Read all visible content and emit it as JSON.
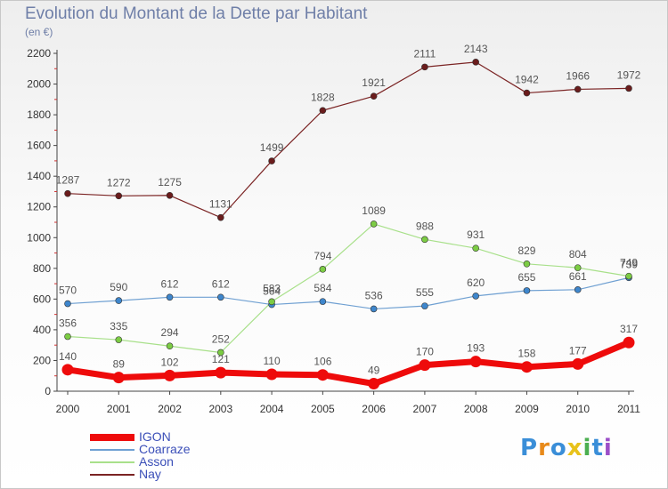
{
  "title": "Evolution du Montant de la Dette par Habitant",
  "subtitle": "(en €)",
  "logo": {
    "letters": [
      "P",
      "r",
      "o",
      "x",
      "i",
      "t",
      "i"
    ],
    "colors": [
      "#3a8ed8",
      "#e88a1a",
      "#3a8ed8",
      "#e8c21a",
      "#4caf50",
      "#3a8ed8",
      "#9c4fc8"
    ]
  },
  "chart_data": {
    "type": "line",
    "title": "Evolution du Montant de la Dette par Habitant",
    "ylabel": "(en €)",
    "xlabel": "",
    "x": [
      "2000",
      "2001",
      "2002",
      "2003",
      "2004",
      "2005",
      "2006",
      "2007",
      "2008",
      "2009",
      "2010",
      "2011"
    ],
    "ylim": [
      0,
      2200
    ],
    "yticks": [
      0,
      200,
      400,
      600,
      800,
      1000,
      1200,
      1400,
      1600,
      1800,
      2000,
      2200
    ],
    "grid": false,
    "legend": "bottom-left",
    "series": [
      {
        "name": "Nay",
        "color": "#7b2424",
        "marker": "#6a1c1c",
        "width": 1.2,
        "values": [
          1287,
          1272,
          1275,
          1131,
          1499,
          1828,
          1921,
          2111,
          2143,
          1942,
          1966,
          1972
        ]
      },
      {
        "name": "Coarraze",
        "color": "#6fa0d2",
        "marker": "#3e86cc",
        "width": 1.2,
        "values": [
          570,
          590,
          612,
          612,
          564,
          584,
          536,
          555,
          620,
          655,
          661,
          739
        ]
      },
      {
        "name": "Asson",
        "color": "#a8e08a",
        "marker": "#7ccc44",
        "width": 1.2,
        "values": [
          356,
          335,
          294,
          252,
          583,
          794,
          1089,
          988,
          931,
          829,
          804,
          749
        ]
      },
      {
        "name": "IGON",
        "color": "#ee0b0b",
        "marker": "#ee0b0b",
        "width": 7,
        "values": [
          140,
          89,
          102,
          121,
          110,
          106,
          49,
          170,
          193,
          158,
          177,
          317
        ]
      }
    ],
    "legend_order": [
      "IGON",
      "Coarraze",
      "Asson",
      "Nay"
    ]
  }
}
